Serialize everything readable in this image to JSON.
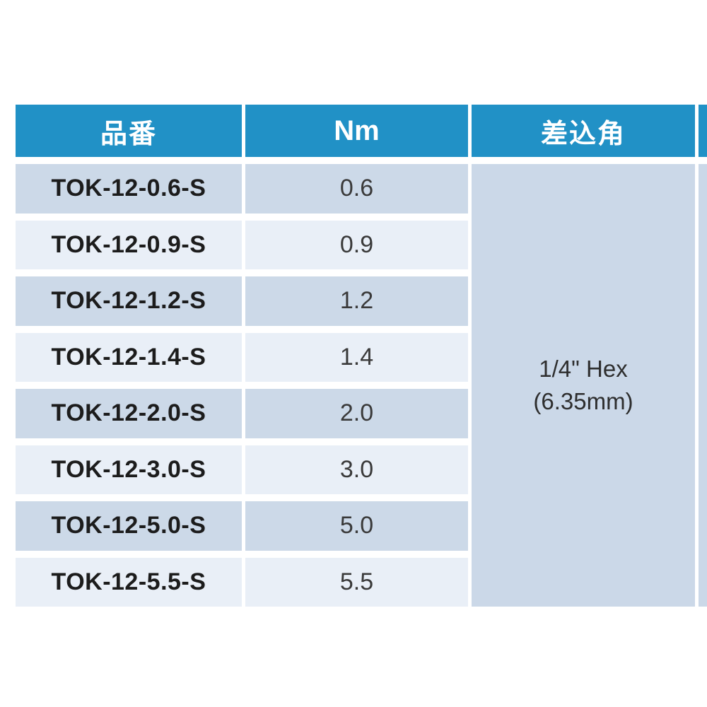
{
  "table": {
    "headers": {
      "part_no": "品番",
      "torque": "Nm",
      "drive": "差込角"
    },
    "rows": [
      {
        "part_no": "TOK-12-0.6-S",
        "nm": "0.6"
      },
      {
        "part_no": "TOK-12-0.9-S",
        "nm": "0.9"
      },
      {
        "part_no": "TOK-12-1.2-S",
        "nm": "1.2"
      },
      {
        "part_no": "TOK-12-1.4-S",
        "nm": "1.4"
      },
      {
        "part_no": "TOK-12-2.0-S",
        "nm": "2.0"
      },
      {
        "part_no": "TOK-12-3.0-S",
        "nm": "3.0"
      },
      {
        "part_no": "TOK-12-5.0-S",
        "nm": "5.0"
      },
      {
        "part_no": "TOK-12-5.5-S",
        "nm": "5.5"
      }
    ],
    "merged_drive_cell": {
      "line1": "1/4\" Hex",
      "line2": "(6.35mm)"
    },
    "colors": {
      "header_bg": "#2191c6",
      "header_text": "#ffffff",
      "row_odd_bg": "#ccd9e8",
      "row_even_bg": "#e9eff7",
      "merged_bg": "#cbd8e8",
      "part_text": "#1c1c1c",
      "value_text": "#3a3a3a",
      "page_bg": "#ffffff"
    }
  }
}
